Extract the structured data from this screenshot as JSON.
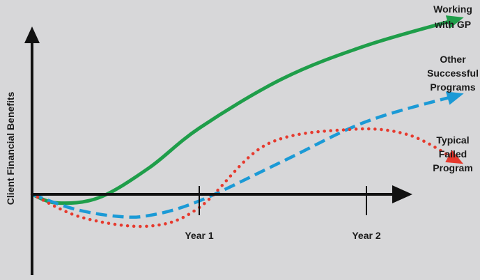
{
  "chart_data": {
    "type": "line",
    "title": "",
    "xlabel": "",
    "ylabel": "Client Financial Benefits",
    "x_ticks": [
      "Year 1",
      "Year 2"
    ],
    "grid": false,
    "legend": "inline-right",
    "series": [
      {
        "name_lines": [
          "Working",
          "with GP"
        ],
        "color": "#1f9e4a",
        "style": "solid",
        "points": [
          [
            0.0,
            0.0
          ],
          [
            0.15,
            -0.13
          ],
          [
            0.4,
            -0.05
          ],
          [
            0.7,
            0.4
          ],
          [
            1.0,
            1.0
          ],
          [
            1.5,
            1.75
          ],
          [
            2.0,
            2.25
          ],
          [
            2.55,
            2.65
          ]
        ]
      },
      {
        "name_lines": [
          "Other",
          "Successful",
          "Programs"
        ],
        "color": "#1b9ad6",
        "style": "dashed",
        "points": [
          [
            0.0,
            0.0
          ],
          [
            0.25,
            -0.22
          ],
          [
            0.5,
            -0.33
          ],
          [
            0.7,
            -0.32
          ],
          [
            1.0,
            -0.1
          ],
          [
            1.5,
            0.5
          ],
          [
            2.0,
            1.1
          ],
          [
            2.55,
            1.5
          ]
        ]
      },
      {
        "name_lines": [
          "Typical",
          "Failed",
          "Program"
        ],
        "color": "#e63a2e",
        "style": "dotted",
        "points": [
          [
            0.0,
            0.0
          ],
          [
            0.3,
            -0.35
          ],
          [
            0.7,
            -0.48
          ],
          [
            1.0,
            -0.2
          ],
          [
            1.4,
            0.75
          ],
          [
            1.9,
            0.98
          ],
          [
            2.25,
            0.9
          ],
          [
            2.55,
            0.5
          ]
        ]
      }
    ]
  }
}
